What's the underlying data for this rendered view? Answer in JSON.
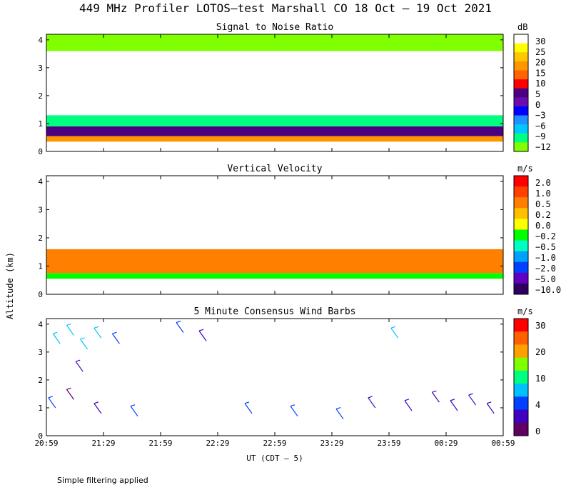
{
  "title": "449 MHz Profiler LOTOS–test Marshall CO 18 Oct – 19 Oct 2021",
  "footnote": "Simple filtering applied",
  "shared_ylabel": "Altitude (km)",
  "shared_xlabel": "UT  (CDT – 5)",
  "x_ticks": [
    "20:59",
    "21:29",
    "21:59",
    "22:29",
    "22:59",
    "23:29",
    "23:59",
    "00:29",
    "00:59"
  ],
  "y_ticks": [
    "0",
    "1",
    "2",
    "3",
    "4"
  ],
  "chart_data": [
    {
      "type": "heatmap",
      "title": "Signal to Noise Ratio",
      "unit": "dB",
      "ylim": [
        0,
        4.2
      ],
      "colorbar": {
        "labels": [
          "30",
          "25",
          "20",
          "15",
          "10",
          "5",
          "0",
          "−3",
          "−6",
          "−9",
          "−12"
        ],
        "colors": [
          "#ffffff",
          "#ffff00",
          "#ffc800",
          "#ff9600",
          "#ff6400",
          "#ff0000",
          "#4b0082",
          "#6a0dad",
          "#0000ff",
          "#1e90ff",
          "#00c8ff",
          "#00ff80",
          "#80ff00"
        ]
      },
      "profile": [
        {
          "alt": [
            0.0,
            0.35
          ],
          "color": "#ffffff"
        },
        {
          "alt": [
            0.35,
            0.55
          ],
          "color": "#ff9600"
        },
        {
          "alt": [
            0.55,
            0.9
          ],
          "color": "#4b0082"
        },
        {
          "alt": [
            0.9,
            1.3
          ],
          "color": "#00ff80"
        },
        {
          "alt": [
            1.3,
            3.6
          ],
          "color": "#ffffff"
        },
        {
          "alt": [
            3.6,
            4.2
          ],
          "color": "#80ff00"
        }
      ]
    },
    {
      "type": "heatmap",
      "title": "Vertical Velocity",
      "unit": "m/s",
      "ylim": [
        0,
        4.2
      ],
      "colorbar": {
        "labels": [
          "2.0",
          "1.0",
          "0.5",
          "0.2",
          "0.0",
          "−0.2",
          "−0.5",
          "−1.0",
          "−2.0",
          "−5.0",
          "−10.0"
        ],
        "colors": [
          "#ff0000",
          "#ff4000",
          "#ff8000",
          "#ffc000",
          "#ffff00",
          "#00ff00",
          "#00ffc0",
          "#00a0ff",
          "#0040ff",
          "#6000c0",
          "#300060"
        ]
      },
      "profile": [
        {
          "alt": [
            0.0,
            0.55
          ],
          "color": "#ffffff"
        },
        {
          "alt": [
            0.55,
            0.75
          ],
          "color": "#00ff00"
        },
        {
          "alt": [
            0.75,
            1.6
          ],
          "color": "#ff8000"
        },
        {
          "alt": [
            1.6,
            4.2
          ],
          "color": "#ffffff"
        }
      ]
    },
    {
      "type": "scatter",
      "title": "5 Minute Consensus Wind Barbs",
      "unit": "m/s",
      "ylim": [
        0,
        4.2
      ],
      "colorbar": {
        "labels": [
          "30",
          "20",
          "10",
          "4",
          "0"
        ],
        "colors": [
          "#ff0000",
          "#ff6000",
          "#ffa000",
          "#80ff00",
          "#00ff80",
          "#00c0ff",
          "#0040ff",
          "#4000c0",
          "#600060"
        ]
      },
      "barbs": [
        {
          "t": 0.03,
          "alt": 3.3,
          "speed": 12
        },
        {
          "t": 0.06,
          "alt": 3.6,
          "speed": 11
        },
        {
          "t": 0.09,
          "alt": 3.1,
          "speed": 12
        },
        {
          "t": 0.12,
          "alt": 3.5,
          "speed": 14
        },
        {
          "t": 0.16,
          "alt": 3.3,
          "speed": 10
        },
        {
          "t": 0.08,
          "alt": 2.3,
          "speed": 6
        },
        {
          "t": 0.02,
          "alt": 1.0,
          "speed": 8
        },
        {
          "t": 0.06,
          "alt": 1.3,
          "speed": 2
        },
        {
          "t": 0.12,
          "alt": 0.8,
          "speed": 4
        },
        {
          "t": 0.2,
          "alt": 0.7,
          "speed": 10
        },
        {
          "t": 0.3,
          "alt": 3.7,
          "speed": 9
        },
        {
          "t": 0.35,
          "alt": 3.4,
          "speed": 6
        },
        {
          "t": 0.45,
          "alt": 0.8,
          "speed": 10
        },
        {
          "t": 0.55,
          "alt": 0.7,
          "speed": 9
        },
        {
          "t": 0.65,
          "alt": 0.6,
          "speed": 8
        },
        {
          "t": 0.72,
          "alt": 1.0,
          "speed": 3
        },
        {
          "t": 0.77,
          "alt": 3.5,
          "speed": 12
        },
        {
          "t": 0.8,
          "alt": 0.9,
          "speed": 5
        },
        {
          "t": 0.86,
          "alt": 1.2,
          "speed": 4
        },
        {
          "t": 0.9,
          "alt": 0.9,
          "speed": 3
        },
        {
          "t": 0.94,
          "alt": 1.1,
          "speed": 5
        },
        {
          "t": 0.98,
          "alt": 0.8,
          "speed": 6
        }
      ]
    }
  ]
}
